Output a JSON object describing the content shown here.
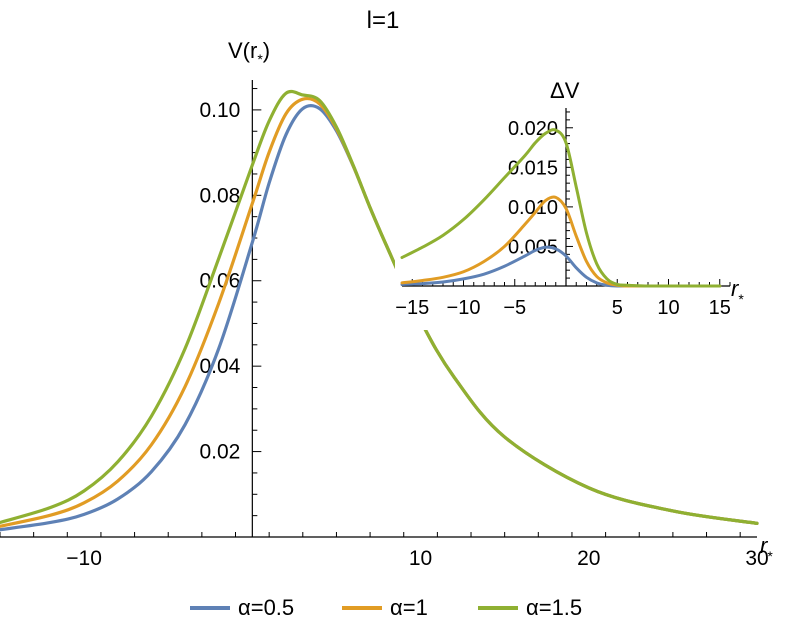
{
  "chart_data": [
    {
      "type": "line",
      "title": "l=1",
      "xlabel": "r",
      "xlabel_sub": "*",
      "ylabel": "V(r",
      "ylabel_sub": "*",
      "ylabel_close": ")",
      "xlim": [
        -15,
        30
      ],
      "ylim": [
        0,
        0.107
      ],
      "xticks_major": [
        -10,
        10,
        20,
        30
      ],
      "xtick_labels": [
        "−10",
        "10",
        "20",
        "30"
      ],
      "yticks_major": [
        0.02,
        0.04,
        0.06,
        0.08,
        0.1
      ],
      "ytick_labels": [
        "0.02",
        "0.04",
        "0.06",
        "0.08",
        "0.10"
      ],
      "grid": false,
      "legend_position": "bottom-center",
      "series": [
        {
          "name": "α=0.5",
          "color": "#5E81B5",
          "x": [
            -15,
            -12,
            -10,
            -8,
            -6,
            -4,
            -2,
            0,
            1,
            2,
            3,
            4,
            5,
            6,
            7,
            8,
            10,
            12,
            15,
            20,
            25,
            30
          ],
          "y": [
            0.0017,
            0.0034,
            0.0053,
            0.0089,
            0.0153,
            0.0263,
            0.0441,
            0.069,
            0.0829,
            0.0942,
            0.1003,
            0.1003,
            0.0951,
            0.0868,
            0.0771,
            0.068,
            0.0507,
            0.0374,
            0.0234,
            0.0115,
            0.0061,
            0.0032
          ]
        },
        {
          "name": "α=1",
          "color": "#E19C24",
          "x": [
            -15,
            -12,
            -10,
            -8,
            -6,
            -4,
            -2,
            0,
            1,
            2,
            3,
            4,
            5,
            6,
            7,
            8,
            10,
            12,
            15,
            20,
            25,
            30
          ],
          "y": [
            0.0025,
            0.0051,
            0.008,
            0.0131,
            0.0216,
            0.0352,
            0.0547,
            0.0781,
            0.0901,
            0.0991,
            0.1025,
            0.1014,
            0.0956,
            0.0869,
            0.0771,
            0.068,
            0.0507,
            0.0374,
            0.0234,
            0.0115,
            0.0061,
            0.0032
          ]
        },
        {
          "name": "α=1.5",
          "color": "#8FB032",
          "x": [
            -15,
            -12,
            -10,
            -8,
            -6,
            -4,
            -2,
            0,
            1,
            2,
            3,
            4,
            5,
            6,
            7,
            8,
            10,
            12,
            15,
            20,
            25,
            30
          ],
          "y": [
            0.0034,
            0.0069,
            0.0108,
            0.0176,
            0.0283,
            0.0441,
            0.0652,
            0.0871,
            0.0974,
            0.1039,
            0.1035,
            0.1022,
            0.096,
            0.087,
            0.0771,
            0.068,
            0.0507,
            0.0374,
            0.0234,
            0.0115,
            0.0061,
            0.0032
          ]
        }
      ]
    },
    {
      "type": "line",
      "title": "",
      "xlabel": "r",
      "xlabel_sub": "*",
      "ylabel": "ΔV",
      "xlim": [
        -16,
        16
      ],
      "ylim": [
        0,
        0.0225
      ],
      "xticks_major": [
        -15,
        -10,
        -5,
        5,
        10,
        15
      ],
      "xtick_labels": [
        "−15",
        "−10",
        "−5",
        "5",
        "10",
        "15"
      ],
      "yticks_major": [
        0.005,
        0.01,
        0.015,
        0.02
      ],
      "ytick_labels": [
        "0.005",
        "0.010",
        "0.015",
        "0.020"
      ],
      "grid": false,
      "series": [
        {
          "name": "α=0.5",
          "color": "#5E81B5",
          "x": [
            -16,
            -14,
            -12,
            -10,
            -8,
            -6,
            -4,
            -3,
            -2,
            -1,
            0,
            1,
            2,
            3,
            4,
            5,
            6,
            8,
            10,
            15
          ],
          "y": [
            0.0002,
            0.0003,
            0.0005,
            0.0009,
            0.0015,
            0.0025,
            0.0038,
            0.0045,
            0.0049,
            0.0047,
            0.0038,
            0.0023,
            0.0011,
            0.0004,
            0.0001,
            0,
            0,
            0,
            0,
            0
          ]
        },
        {
          "name": "α=1",
          "color": "#E19C24",
          "x": [
            -16,
            -14,
            -12,
            -10,
            -8,
            -6,
            -4,
            -3,
            -2,
            -1,
            0,
            1,
            2,
            3,
            4,
            5,
            6,
            8,
            10,
            15
          ],
          "y": [
            0.0004,
            0.0007,
            0.0011,
            0.0018,
            0.0031,
            0.005,
            0.0078,
            0.0093,
            0.0108,
            0.0112,
            0.0098,
            0.0063,
            0.0031,
            0.0012,
            0.0004,
            0.0001,
            0,
            0,
            0,
            0
          ]
        },
        {
          "name": "α=1.5",
          "color": "#8FB032",
          "x": [
            -16,
            -14,
            -12,
            -10,
            -8,
            -6,
            -4,
            -3,
            -2,
            -1,
            0,
            1,
            2,
            3,
            4,
            5,
            6,
            8,
            10,
            15
          ],
          "y": [
            0.0036,
            0.0049,
            0.0064,
            0.0084,
            0.0109,
            0.0137,
            0.0165,
            0.0181,
            0.0193,
            0.0197,
            0.0181,
            0.0125,
            0.0067,
            0.0028,
            0.0009,
            0.0002,
            0.0001,
            0,
            0,
            0
          ]
        }
      ]
    }
  ]
}
